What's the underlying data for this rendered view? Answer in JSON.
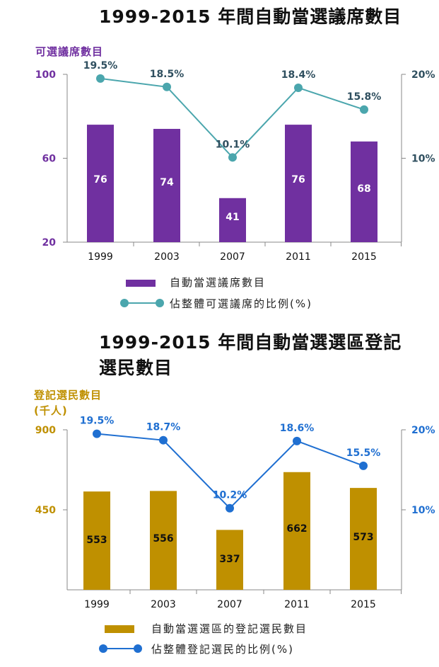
{
  "chart_data": [
    {
      "type": "bar+line",
      "title": "1999-2015 年間自動當選議席數目",
      "ylabel_left": "可選議席數目",
      "categories": [
        "1999",
        "2003",
        "2007",
        "2011",
        "2015"
      ],
      "bars": {
        "name": "自動當選議席數目",
        "values": [
          76,
          74,
          41,
          76,
          68
        ],
        "labels": [
          "76",
          "74",
          "41",
          "76",
          "68"
        ],
        "color": "#7030a0"
      },
      "line": {
        "name": "佔整體可選議席的比例(%)",
        "values": [
          19.5,
          18.5,
          10.1,
          18.4,
          15.8
        ],
        "labels": [
          "19.5%",
          "18.5%",
          "10.1%",
          "18.4%",
          "15.8%"
        ],
        "color": "#4ba6ad"
      },
      "left_axis": {
        "min": 20,
        "max": 100,
        "ticks": [
          100,
          60,
          20
        ],
        "tick_labels": [
          "100",
          "60",
          "20"
        ],
        "color": "#7030a0"
      },
      "right_axis": {
        "min": 0,
        "max": 20,
        "ticks": [
          20,
          10
        ],
        "tick_labels": [
          "20%",
          "10%"
        ],
        "color": "#2f4f5f"
      },
      "label_color": "#2f4f5f"
    },
    {
      "type": "bar+line",
      "title_line1": "1999-2015 年間自動當選選區登記",
      "title_line2": "選民數目",
      "ylabel_left_line1": "登記選民數目",
      "ylabel_left_line2": "(千人)",
      "categories": [
        "1999",
        "2003",
        "2007",
        "2011",
        "2015"
      ],
      "bars": {
        "name": "自動當選選區的登記選民數目",
        "values": [
          553,
          556,
          337,
          662,
          573
        ],
        "labels": [
          "553",
          "556",
          "337",
          "662",
          "573"
        ],
        "color": "#bf9000"
      },
      "line": {
        "name": "佔整體登記選民的比例(%)",
        "values": [
          19.5,
          18.7,
          10.2,
          18.6,
          15.5
        ],
        "labels": [
          "19.5%",
          "18.7%",
          "10.2%",
          "18.6%",
          "15.5%"
        ],
        "color": "#1f6fd1"
      },
      "left_axis": {
        "min": 0,
        "max": 900,
        "ticks": [
          900,
          450
        ],
        "tick_labels": [
          "900",
          "450"
        ],
        "color": "#bf9000"
      },
      "right_axis": {
        "min": 0,
        "max": 20,
        "ticks": [
          20,
          10
        ],
        "tick_labels": [
          "20%",
          "10%"
        ],
        "color": "#1f6fd1"
      },
      "label_color": "#1f6fd1"
    }
  ]
}
